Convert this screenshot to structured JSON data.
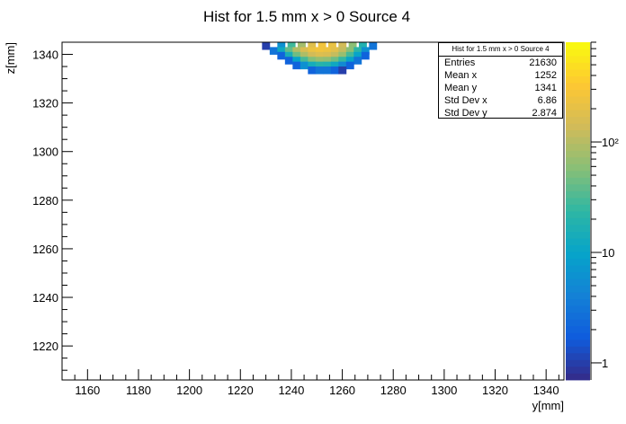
{
  "chart_data": {
    "type": "heatmap",
    "title": "Hist for 1.5 mm x > 0 Source 4",
    "xlabel": "y[mm]",
    "ylabel": "z[mm]",
    "xlim": [
      1150,
      1347
    ],
    "ylim": [
      1206,
      1345
    ],
    "x_ticks": [
      1160,
      1180,
      1200,
      1220,
      1240,
      1260,
      1280,
      1300,
      1320,
      1340
    ],
    "y_ticks": [
      1220,
      1240,
      1260,
      1280,
      1300,
      1320,
      1340
    ],
    "color_scale": "log",
    "zlim": [
      0.7,
      800
    ],
    "z_ticks": [
      {
        "value": 1,
        "label": "1"
      },
      {
        "value": 10,
        "label": "10"
      },
      {
        "value": 100,
        "label": "10²"
      }
    ],
    "palette": [
      "#352a87",
      "#0f5cdd",
      "#1481d6",
      "#06a4ca",
      "#2eb7a4",
      "#87bf77",
      "#d1bb59",
      "#fec832",
      "#f9fb0e"
    ],
    "cell_width": 3,
    "cell_height": 3,
    "rows": [
      {
        "z": 1343.5,
        "cells": [
          [
            1230,
            1
          ],
          [
            1236,
            6
          ],
          [
            1240,
            28
          ],
          [
            1244,
            80
          ],
          [
            1248,
            180
          ],
          [
            1252,
            260
          ],
          [
            1256,
            220
          ],
          [
            1260,
            140
          ],
          [
            1264,
            60
          ],
          [
            1268,
            18
          ],
          [
            1272,
            3
          ]
        ]
      },
      {
        "z": 1341.5,
        "cells": [
          [
            1233,
            3
          ],
          [
            1236,
            12
          ],
          [
            1239,
            40
          ],
          [
            1242,
            95
          ],
          [
            1245,
            160
          ],
          [
            1248,
            230
          ],
          [
            1251,
            260
          ],
          [
            1254,
            240
          ],
          [
            1257,
            190
          ],
          [
            1260,
            120
          ],
          [
            1263,
            60
          ],
          [
            1266,
            22
          ],
          [
            1269,
            6
          ]
        ]
      },
      {
        "z": 1339.5,
        "cells": [
          [
            1236,
            2
          ],
          [
            1239,
            15
          ],
          [
            1242,
            45
          ],
          [
            1245,
            90
          ],
          [
            1248,
            140
          ],
          [
            1251,
            170
          ],
          [
            1254,
            160
          ],
          [
            1257,
            120
          ],
          [
            1260,
            70
          ],
          [
            1263,
            30
          ],
          [
            1266,
            10
          ],
          [
            1269,
            2
          ]
        ]
      },
      {
        "z": 1337.5,
        "cells": [
          [
            1239,
            2
          ],
          [
            1242,
            10
          ],
          [
            1245,
            30
          ],
          [
            1248,
            55
          ],
          [
            1251,
            70
          ],
          [
            1254,
            65
          ],
          [
            1257,
            45
          ],
          [
            1260,
            25
          ],
          [
            1263,
            10
          ],
          [
            1266,
            3
          ]
        ]
      },
      {
        "z": 1335.5,
        "cells": [
          [
            1242,
            2
          ],
          [
            1245,
            6
          ],
          [
            1248,
            14
          ],
          [
            1251,
            20
          ],
          [
            1254,
            18
          ],
          [
            1257,
            12
          ],
          [
            1260,
            5
          ],
          [
            1263,
            2
          ]
        ]
      },
      {
        "z": 1333.5,
        "cells": [
          [
            1248,
            2
          ],
          [
            1251,
            3
          ],
          [
            1254,
            3
          ],
          [
            1257,
            2
          ],
          [
            1260,
            1
          ]
        ]
      }
    ],
    "stats": {
      "title": "Hist for 1.5 mm x > 0 Source 4",
      "rows": [
        {
          "label": "Entries",
          "value": "21630"
        },
        {
          "label": "Mean x",
          "value": "1252"
        },
        {
          "label": "Mean y",
          "value": "1341"
        },
        {
          "label": "Std Dev x",
          "value": "6.86"
        },
        {
          "label": "Std Dev y",
          "value": "2.874"
        }
      ]
    }
  }
}
